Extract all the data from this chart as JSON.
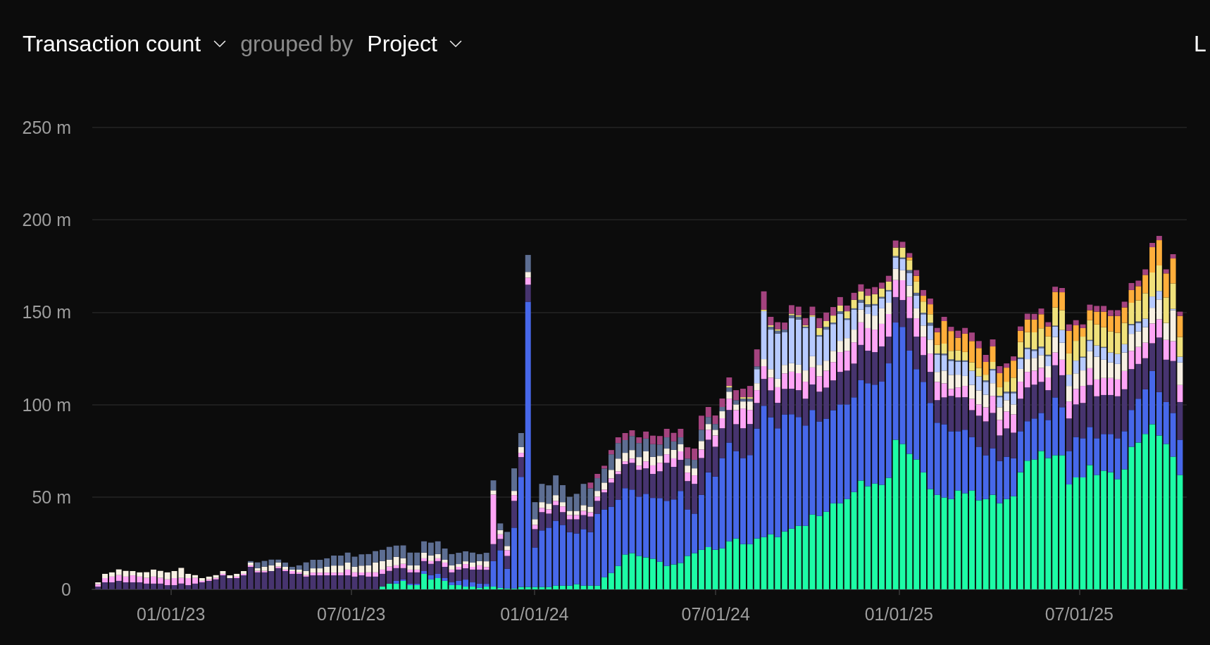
{
  "chart_data": {
    "type": "bar",
    "title": "Transaction count",
    "subtitle": "grouped by",
    "annotations": [
      "Project",
      "L"
    ],
    "stacked": true,
    "grid": "y",
    "xlim": [
      "2022-10-14",
      "2025-10-17"
    ],
    "xticks": [
      {
        "value": "2023-01-01",
        "label": "01/01/23"
      },
      {
        "value": "2023-07-01",
        "label": "07/01/23"
      },
      {
        "value": "2024-01-01",
        "label": "01/01/24"
      },
      {
        "value": "2024-07-01",
        "label": "07/01/24"
      },
      {
        "value": "2025-01-01",
        "label": "01/01/25"
      },
      {
        "value": "2025-07-01",
        "label": "07/01/25"
      }
    ],
    "ylim": [
      0,
      250
    ],
    "yticks": [
      0,
      {
        "value": 50,
        "label": "50 m"
      },
      {
        "value": 100,
        "label": "100 m"
      },
      {
        "value": 150,
        "label": "150 m"
      },
      {
        "value": 200,
        "label": "200 m"
      },
      {
        "value": 250,
        "label": "250 m"
      }
    ],
    "x": [
      "2022-10-17",
      "2022-10-24",
      "2022-10-31",
      "2022-11-07",
      "2022-11-14",
      "2022-11-21",
      "2022-11-28",
      "2022-12-05",
      "2022-12-12",
      "2022-12-19",
      "2022-12-26",
      "2023-01-02",
      "2023-01-09",
      "2023-01-16",
      "2023-01-23",
      "2023-01-30",
      "2023-02-06",
      "2023-02-13",
      "2023-02-20",
      "2023-02-27",
      "2023-03-06",
      "2023-03-13",
      "2023-03-20",
      "2023-03-27",
      "2023-04-03",
      "2023-04-10",
      "2023-04-17",
      "2023-04-24",
      "2023-05-01",
      "2023-05-08",
      "2023-05-15",
      "2023-05-22",
      "2023-05-29",
      "2023-06-05",
      "2023-06-12",
      "2023-06-19",
      "2023-06-26",
      "2023-07-03",
      "2023-07-10",
      "2023-07-17",
      "2023-07-24",
      "2023-07-31",
      "2023-08-07",
      "2023-08-14",
      "2023-08-21",
      "2023-08-28",
      "2023-09-04",
      "2023-09-11",
      "2023-09-18",
      "2023-09-25",
      "2023-10-02",
      "2023-10-09",
      "2023-10-16",
      "2023-10-23",
      "2023-10-30",
      "2023-11-06",
      "2023-11-13",
      "2023-11-20",
      "2023-11-27",
      "2023-12-04",
      "2023-12-11",
      "2023-12-18",
      "2023-12-25",
      "2024-01-01",
      "2024-01-08",
      "2024-01-15",
      "2024-01-22",
      "2024-01-29",
      "2024-02-05",
      "2024-02-12",
      "2024-02-19",
      "2024-02-26",
      "2024-03-04",
      "2024-03-11",
      "2024-03-18",
      "2024-03-25",
      "2024-04-01",
      "2024-04-08",
      "2024-04-15",
      "2024-04-22",
      "2024-04-29",
      "2024-05-06",
      "2024-05-13",
      "2024-05-20",
      "2024-05-27",
      "2024-06-03",
      "2024-06-10",
      "2024-06-17",
      "2024-06-24",
      "2024-07-01",
      "2024-07-08",
      "2024-07-15",
      "2024-07-22",
      "2024-07-29",
      "2024-08-05",
      "2024-08-12",
      "2024-08-19",
      "2024-08-26",
      "2024-09-02",
      "2024-09-09",
      "2024-09-16",
      "2024-09-23",
      "2024-09-30",
      "2024-10-07",
      "2024-10-14",
      "2024-10-21",
      "2024-10-28",
      "2024-11-04",
      "2024-11-11",
      "2024-11-18",
      "2024-11-25",
      "2024-12-02",
      "2024-12-09",
      "2024-12-16",
      "2024-12-23",
      "2024-12-30",
      "2025-01-06",
      "2025-01-13",
      "2025-01-20",
      "2025-01-27",
      "2025-02-03",
      "2025-02-10",
      "2025-02-17",
      "2025-02-24",
      "2025-03-03",
      "2025-03-10",
      "2025-03-17",
      "2025-03-24",
      "2025-03-31",
      "2025-04-07",
      "2025-04-14",
      "2025-04-21",
      "2025-04-28",
      "2025-05-05",
      "2025-05-12",
      "2025-05-19",
      "2025-05-26",
      "2025-06-02",
      "2025-06-09",
      "2025-06-16",
      "2025-06-23",
      "2025-06-30",
      "2025-07-07",
      "2025-07-14",
      "2025-07-21",
      "2025-07-28",
      "2025-08-04",
      "2025-08-11",
      "2025-08-18",
      "2025-08-25",
      "2025-09-01",
      "2025-09-08",
      "2025-09-15",
      "2025-09-22",
      "2025-09-29",
      "2025-10-06",
      "2025-10-13"
    ],
    "series": [
      {
        "color": "#1dfca6",
        "values": [
          null,
          null,
          null,
          null,
          null,
          null,
          null,
          null,
          null,
          null,
          null,
          null,
          null,
          null,
          null,
          null,
          null,
          null,
          null,
          null,
          null,
          null,
          null,
          null,
          null,
          null,
          null,
          null,
          null,
          null,
          null,
          null,
          null,
          null,
          null,
          null,
          null,
          null,
          null,
          null,
          null,
          1.5,
          3.1,
          3.1,
          4.6,
          2.3,
          2.3,
          8.4,
          5.4,
          6.1,
          4.6,
          2.3,
          2.3,
          1.5,
          1.5,
          0.8,
          1.5,
          1.5,
          0.8,
          0.5,
          0.5,
          1.3,
          1.3,
          1.3,
          1.3,
          1.3,
          2.0,
          2.0,
          2.0,
          2.8,
          2.0,
          2.0,
          2.0,
          6.6,
          8.9,
          12.7,
          18.9,
          19.6,
          18.1,
          17.3,
          16.6,
          15.0,
          12.7,
          13.5,
          14.3,
          18.1,
          19.6,
          21.4,
          22.9,
          21.4,
          22.2,
          26.0,
          27.5,
          24.5,
          24.5,
          27.5,
          28.3,
          29.8,
          28.3,
          31.3,
          32.9,
          34.4,
          34.4,
          40.5,
          39.7,
          42.0,
          46.6,
          46.6,
          48.9,
          52.7,
          58.9,
          55.8,
          57.3,
          56.6,
          60.4,
          81.0,
          78.7,
          73.4,
          70.3,
          63.4,
          54.3,
          51.2,
          49.7,
          48.9,
          53.5,
          52.0,
          53.5,
          48.2,
          48.9,
          51.2,
          46.6,
          48.9,
          50.4,
          63.4,
          69.6,
          70.3,
          74.9,
          71.1,
          72.6,
          72.6,
          56.8,
          60.6,
          60.6,
          67.3,
          61.9,
          64.2,
          63.4,
          59.6,
          65.0,
          77.2,
          79.5,
          84.1,
          89.4,
          83.3,
          78.7,
          71.8,
          61.9
        ]
      },
      {
        "color": "#4768ea",
        "values": [
          null,
          null,
          null,
          null,
          null,
          null,
          null,
          null,
          null,
          null,
          null,
          null,
          null,
          null,
          null,
          null,
          null,
          null,
          null,
          null,
          null,
          null,
          null,
          null,
          null,
          null,
          null,
          null,
          null,
          null,
          null,
          null,
          null,
          null,
          null,
          null,
          null,
          null,
          null,
          null,
          null,
          null,
          null,
          1.5,
          0.8,
          0.8,
          0.8,
          1.5,
          2.3,
          2.3,
          1.5,
          1.5,
          2.3,
          3.8,
          2.3,
          2.3,
          1.5,
          13.8,
          20.4,
          10.7,
          32.9,
          59.6,
          154.4,
          21.4,
          30.6,
          32.1,
          35.2,
          32.9,
          29.0,
          27.5,
          30.6,
          29.0,
          39.0,
          36.7,
          35.9,
          35.9,
          35.9,
          34.4,
          32.1,
          34.4,
          32.9,
          34.4,
          35.2,
          35.2,
          39.0,
          25.2,
          21.4,
          29.8,
          40.5,
          39.7,
          48.9,
          53.5,
          47.4,
          46.6,
          48.2,
          59.6,
          71.1,
          63.4,
          58.9,
          63.4,
          61.9,
          58.9,
          54.3,
          56.6,
          51.2,
          50.4,
          50.4,
          53.5,
          51.2,
          51.2,
          54.3,
          55.8,
          53.5,
          55.8,
          61.9,
          63.4,
          63.4,
          55.8,
          48.9,
          48.9,
          46.6,
          39.0,
          39.7,
          36.7,
          32.1,
          34.4,
          29.0,
          29.0,
          23.7,
          25.2,
          22.9,
          22.9,
          20.6,
          22.2,
          21.4,
          22.2,
          20.6,
          20.6,
          31.3,
          26.0,
          18.1,
          21.9,
          21.2,
          20.6,
          19.9,
          19.9,
          20.7,
          22.2,
          20.6,
          19.9,
          23.7,
          24.2,
          28.8,
          23.5,
          22.7,
          23.7,
          19.1
        ]
      },
      {
        "color": "#47346f",
        "values": [
          1.5,
          3.8,
          3.8,
          4.6,
          3.8,
          3.8,
          3.8,
          3.1,
          3.1,
          3.1,
          2.3,
          2.3,
          3.1,
          2.3,
          3.1,
          3.8,
          4.6,
          5.4,
          7.6,
          6.1,
          6.1,
          7.6,
          12.2,
          9.2,
          9.2,
          9.9,
          11.5,
          9.9,
          8.4,
          8.4,
          6.9,
          7.6,
          7.6,
          7.6,
          7.6,
          7.6,
          7.6,
          6.9,
          7.6,
          6.9,
          6.9,
          6.9,
          6.9,
          6.9,
          6.1,
          6.1,
          6.1,
          5.4,
          6.1,
          6.9,
          6.1,
          5.4,
          6.1,
          6.1,
          6.9,
          7.6,
          7.6,
          9.2,
          6.1,
          6.9,
          14.5,
          10.7,
          9.2,
          9.9,
          9.9,
          7.6,
          8.4,
          6.9,
          6.9,
          7.6,
          7.6,
          8.4,
          6.9,
          9.2,
          13.0,
          13.8,
          13.0,
          14.5,
          14.5,
          13.8,
          13.0,
          14.5,
          20.6,
          17.6,
          16.8,
          15.3,
          16.1,
          19.9,
          17.6,
          16.1,
          16.1,
          17.6,
          14.5,
          16.1,
          16.8,
          13.8,
          14.5,
          14.5,
          13.8,
          13.8,
          13.8,
          14.5,
          14.5,
          13.8,
          16.1,
          16.8,
          16.1,
          17.6,
          18.3,
          18.3,
          19.1,
          17.6,
          17.6,
          19.1,
          14.5,
          13.8,
          14.5,
          17.6,
          17.6,
          14.5,
          16.8,
          12.2,
          14.5,
          19.1,
          18.3,
          17.6,
          14.5,
          16.8,
          18.3,
          19.1,
          13.8,
          15.3,
          13.8,
          17.6,
          18.3,
          18.3,
          16.8,
          16.1,
          17.4,
          17.3,
          17.6,
          17.6,
          19.1,
          22.7,
          22.7,
          21.1,
          21.1,
          22.7,
          22.7,
          22.1,
          18.8,
          16.8,
          15.0,
          29.5,
          22.9,
          28.1,
          20.4
        ]
      },
      {
        "color": "#ffa5f6",
        "values": [
          1.3,
          2.3,
          3.1,
          3.1,
          3.1,
          3.8,
          3.1,
          3.1,
          3.8,
          3.1,
          3.1,
          3.8,
          3.1,
          3.8,
          3.1,
          0.8,
          0.8,
          0.8,
          0.8,
          null,
          0.8,
          0.8,
          0.8,
          0.8,
          0.8,
          null,
          0.8,
          0.8,
          1.5,
          0.8,
          0.8,
          1.5,
          1.5,
          1.5,
          1.5,
          1.5,
          3.1,
          2.3,
          1.5,
          2.3,
          2.3,
          2.3,
          2.3,
          1.5,
          2.3,
          1.5,
          1.5,
          1.5,
          1.5,
          1.5,
          2.3,
          1.5,
          1.5,
          2.3,
          1.5,
          2.3,
          1.5,
          26.8,
          2.5,
          3.1,
          3.1,
          2.3,
          3.8,
          2.3,
          2.3,
          2.3,
          2.3,
          3.1,
          2.3,
          2.3,
          2.3,
          2.3,
          2.3,
          1.5,
          2.3,
          1.5,
          1.5,
          2.3,
          2.3,
          3.8,
          4.6,
          4.6,
          4.6,
          4.6,
          4.6,
          4.6,
          4.6,
          4.6,
          5.4,
          6.1,
          5.4,
          6.1,
          7.6,
          10.7,
          7.6,
          6.9,
          6.9,
          6.9,
          8.4,
          8.4,
          9.2,
          9.2,
          9.2,
          9.2,
          8.4,
          9.2,
          9.9,
          10.7,
          10.7,
          11.5,
          12.2,
          12.2,
          12.2,
          12.2,
          12.2,
          9.2,
          10.7,
          11.5,
          9.9,
          9.9,
          9.9,
          9.9,
          7.6,
          3.8,
          5.4,
          6.1,
          6.1,
          6.1,
          7.6,
          9.2,
          8.4,
          9.2,
          9.9,
          9.2,
          8.4,
          7.6,
          7.6,
          6.9,
          6.9,
          8.4,
          9.2,
          8.4,
          9.2,
          9.1,
          9.1,
          9.2,
          9.2,
          9.1,
          9.9,
          9.9,
          9.2,
          8.4,
          10.7,
          9.9,
          10.7,
          10.7,
          9.2
        ]
      },
      {
        "color": "#f7f0e3",
        "values": [
          1.0,
          2.3,
          2.3,
          3.1,
          3.1,
          2.3,
          2.3,
          3.1,
          3.8,
          3.8,
          3.8,
          3.8,
          5.4,
          2.3,
          1.5,
          1.5,
          1.5,
          1.5,
          1.5,
          1.5,
          1.5,
          1.5,
          1.5,
          1.5,
          2.3,
          3.1,
          2.3,
          1.5,
          0.8,
          1.5,
          2.3,
          2.3,
          2.3,
          3.1,
          3.8,
          3.8,
          3.8,
          3.1,
          3.8,
          3.8,
          5.4,
          4.6,
          3.8,
          4.6,
          3.1,
          2.3,
          2.3,
          3.1,
          3.1,
          2.3,
          1.5,
          2.3,
          1.5,
          1.5,
          2.3,
          2.3,
          3.1,
          2.3,
          2.3,
          2.3,
          2.3,
          3.1,
          3.1,
          3.1,
          3.1,
          3.1,
          3.1,
          2.3,
          2.3,
          2.3,
          3.1,
          3.1,
          3.1,
          3.8,
          4.6,
          6.9,
          4.6,
          4.6,
          4.6,
          5.4,
          4.6,
          3.8,
          3.1,
          4.6,
          3.8,
          3.8,
          3.8,
          4.6,
          3.1,
          3.1,
          3.8,
          3.8,
          3.1,
          3.8,
          4.6,
          3.8,
          3.8,
          4.6,
          4.6,
          4.6,
          4.6,
          4.6,
          6.1,
          6.1,
          6.1,
          5.4,
          6.1,
          6.1,
          6.9,
          6.9,
          6.9,
          7.6,
          7.6,
          8.4,
          6.1,
          6.1,
          5.4,
          6.1,
          5.4,
          6.1,
          7.6,
          5.4,
          6.9,
          7.6,
          6.9,
          5.4,
          7.6,
          7.6,
          6.9,
          6.9,
          6.9,
          6.1,
          5.4,
          6.9,
          6.9,
          6.9,
          6.9,
          6.1,
          8.4,
          9.2,
          8.4,
          8.4,
          8.4,
          9.2,
          12.3,
          9.9,
          8.4,
          8.4,
          10.0,
          9.2,
          8.4,
          8.4,
          8.5,
          10.7,
          9.2,
          16.8,
          12.2
        ]
      },
      {
        "color": "#b7caff",
        "values": [
          null,
          null,
          null,
          null,
          null,
          null,
          null,
          null,
          null,
          null,
          null,
          null,
          null,
          null,
          null,
          null,
          null,
          null,
          null,
          null,
          null,
          null,
          null,
          null,
          null,
          null,
          null,
          null,
          null,
          null,
          null,
          null,
          null,
          null,
          null,
          null,
          null,
          null,
          null,
          null,
          null,
          null,
          null,
          null,
          null,
          null,
          null,
          null,
          null,
          null,
          null,
          null,
          null,
          null,
          null,
          null,
          null,
          null,
          null,
          null,
          null,
          null,
          null,
          null,
          null,
          null,
          null,
          null,
          null,
          null,
          null,
          null,
          null,
          null,
          null,
          null,
          null,
          null,
          null,
          null,
          null,
          null,
          null,
          null,
          null,
          null,
          null,
          null,
          null,
          null,
          null,
          null,
          null,
          null,
          null,
          7.6,
          26.0,
          21.4,
          24.5,
          17.6,
          24.5,
          24.5,
          22.9,
          21.4,
          15.3,
          16.8,
          14.5,
          14.5,
          9.9,
          10.7,
          3.8,
          3.8,
          5.4,
          5.4,
          6.1,
          6.1,
          6.1,
          6.9,
          6.9,
          6.1,
          7.6,
          9.2,
          8.4,
          7.6,
          6.9,
          7.6,
          7.6,
          7.6,
          6.9,
          6.9,
          5.4,
          3.8,
          6.1,
          5.4,
          5.4,
          3.8,
          3.8,
          5.4,
          5.6,
          6.9,
          6.1,
          6.9,
          6.9,
          5.6,
          6.1,
          6.4,
          5.4,
          5.4,
          4.5,
          4.8,
          4.6,
          4.6,
          6.1,
          4.6,
          null,
          0.7,
          3.1
        ]
      },
      {
        "color": "#5d6e92",
        "values": [
          null,
          null,
          null,
          null,
          null,
          null,
          null,
          null,
          null,
          null,
          null,
          null,
          null,
          null,
          null,
          null,
          null,
          null,
          null,
          null,
          null,
          null,
          0.8,
          3.1,
          3.1,
          3.1,
          1.5,
          2.3,
          1.5,
          2.3,
          4.6,
          4.6,
          4.6,
          4.6,
          5.4,
          5.4,
          5.4,
          5.4,
          6.1,
          6.1,
          6.1,
          6.1,
          6.9,
          6.1,
          6.9,
          6.9,
          6.9,
          6.1,
          6.9,
          6.9,
          6.1,
          6.1,
          6.1,
          5.4,
          5.4,
          3.8,
          4.6,
          5.4,
          3.6,
          7.6,
          12.2,
          7.6,
          9.2,
          9.2,
          9.9,
          9.9,
          10.7,
          9.2,
          7.6,
          9.2,
          11.5,
          9.9,
          6.9,
          7.6,
          8.4,
          8.4,
          6.9,
          7.6,
          7.6,
          6.9,
          6.9,
          6.1,
          6.1,
          4.6,
          3.8,
          3.8,
          4.6,
          6.1,
          3.8,
          3.1,
          2.3,
          2.3,
          2.3,
          1.5,
          1.5,
          1.5,
          null,
          1.5,
          1.5,
          1.5,
          1.5,
          1.5,
          0.8,
          null,
          0.8,
          1.5,
          0.8,
          1.5,
          0.8,
          0.8,
          1.5,
          1.5,
          0.8,
          0.8,
          0.8,
          0.8,
          0.8,
          1.5,
          1.5,
          0.8,
          1.5,
          0.8,
          0.8,
          0.8,
          0.8,
          0.8,
          null,
          null,
          0.8,
          0.8,
          0.8,
          0.8,
          0.8,
          0.8,
          0.8,
          0.8,
          0.8,
          0.8,
          0.5,
          null,
          null,
          null,
          0.5,
          0.5,
          null,
          0.5,
          null,
          null,
          null,
          0.5,
          0.8,
          null,
          null,
          null,
          null,
          null,
          null
        ]
      },
      {
        "color": "#f0e17b",
        "values": [
          null,
          null,
          null,
          null,
          null,
          null,
          null,
          null,
          null,
          null,
          null,
          null,
          null,
          null,
          null,
          null,
          null,
          null,
          null,
          null,
          null,
          null,
          null,
          null,
          null,
          null,
          null,
          null,
          null,
          null,
          null,
          null,
          null,
          null,
          null,
          null,
          null,
          null,
          null,
          null,
          null,
          null,
          null,
          null,
          null,
          null,
          null,
          null,
          null,
          null,
          null,
          null,
          null,
          null,
          null,
          null,
          null,
          null,
          null,
          null,
          null,
          null,
          null,
          null,
          null,
          null,
          null,
          null,
          null,
          null,
          null,
          null,
          null,
          null,
          null,
          null,
          null,
          null,
          null,
          null,
          null,
          null,
          null,
          null,
          null,
          null,
          null,
          null,
          null,
          null,
          null,
          0.8,
          null,
          0.8,
          0.8,
          null,
          0.8,
          0.8,
          0.8,
          null,
          0.8,
          0.8,
          0.8,
          0.8,
          3.8,
          3.1,
          3.8,
          3.1,
          3.8,
          4.6,
          4.6,
          4.6,
          5.4,
          4.6,
          4.6,
          4.6,
          5.4,
          5.4,
          6.1,
          6.1,
          4.6,
          4.6,
          5.4,
          4.6,
          5.4,
          4.6,
          4.6,
          4.6,
          3.1,
          3.8,
          4.6,
          5.4,
          7.6,
          8.4,
          8.4,
          9.2,
          9.9,
          9.9,
          9.9,
          10.7,
          11.5,
          10.7,
          10.9,
          10.7,
          11.4,
          10.7,
          11.4,
          11.5,
          11.5,
          11.5,
          11.4,
          13.8,
          13.0,
          13.8,
          13.8,
          13.8,
          10.7
        ]
      },
      {
        "color": "#ffae3b",
        "values": [
          null,
          null,
          null,
          null,
          null,
          null,
          null,
          null,
          null,
          null,
          null,
          null,
          null,
          null,
          null,
          null,
          null,
          null,
          null,
          null,
          null,
          null,
          null,
          null,
          null,
          null,
          null,
          null,
          null,
          null,
          null,
          null,
          null,
          null,
          null,
          null,
          null,
          null,
          null,
          null,
          null,
          null,
          null,
          null,
          null,
          null,
          null,
          null,
          null,
          null,
          null,
          null,
          null,
          null,
          null,
          null,
          null,
          null,
          null,
          null,
          null,
          null,
          null,
          null,
          null,
          null,
          null,
          null,
          null,
          null,
          null,
          null,
          null,
          null,
          null,
          null,
          null,
          null,
          null,
          null,
          null,
          null,
          null,
          null,
          null,
          null,
          null,
          null,
          null,
          null,
          null,
          null,
          null,
          null,
          null,
          null,
          null,
          null,
          null,
          null,
          null,
          null,
          null,
          null,
          null,
          null,
          null,
          null,
          null,
          null,
          null,
          null,
          null,
          null,
          null,
          null,
          null,
          1.5,
          3.1,
          3.1,
          5.4,
          6.9,
          12.2,
          10.7,
          6.9,
          9.9,
          11.5,
          10.7,
          6.9,
          8.4,
          7.6,
          7.6,
          9.2,
          6.1,
          6.9,
          6.9,
          7.6,
          5.4,
          8.4,
          9.7,
          12.2,
          8.4,
          4.6,
          5.4,
          6.9,
          8.4,
          8.4,
          9.1,
          8.4,
          6.9,
          7.7,
          9.9,
          13.7,
          13.7,
          13.0,
          13.5,
          11.4
        ]
      },
      {
        "color": "#a4437f",
        "values": [
          null,
          null,
          null,
          null,
          null,
          null,
          null,
          null,
          null,
          null,
          null,
          null,
          null,
          null,
          null,
          null,
          null,
          null,
          null,
          null,
          null,
          null,
          null,
          null,
          null,
          null,
          null,
          null,
          null,
          null,
          null,
          null,
          null,
          null,
          null,
          null,
          null,
          null,
          null,
          null,
          null,
          null,
          null,
          null,
          null,
          null,
          null,
          null,
          null,
          null,
          null,
          null,
          null,
          null,
          null,
          null,
          null,
          null,
          null,
          null,
          null,
          null,
          null,
          null,
          null,
          null,
          null,
          null,
          null,
          null,
          null,
          3.1,
          2.3,
          1.5,
          2.3,
          3.1,
          3.8,
          3.1,
          3.1,
          3.8,
          4.6,
          4.6,
          4.6,
          4.6,
          4.6,
          6.1,
          6.1,
          7.6,
          5.4,
          4.6,
          4.6,
          4.6,
          5.4,
          4.6,
          6.1,
          9.2,
          9.9,
          4.6,
          3.8,
          3.8,
          4.6,
          4.6,
          3.8,
          4.6,
          5.4,
          4.6,
          4.6,
          4.6,
          3.1,
          3.8,
          3.8,
          3.8,
          3.8,
          3.1,
          3.1,
          3.8,
          3.1,
          2.3,
          3.1,
          3.1,
          3.1,
          2.3,
          2.3,
          2.3,
          3.8,
          3.1,
          4.6,
          3.8,
          3.8,
          3.8,
          3.8,
          2.3,
          2.3,
          2.3,
          3.1,
          3.1,
          3.1,
          2.3,
          2.8,
          2.3,
          3.5,
          2.8,
          2.0,
          3.0,
          3.1,
          3.1,
          3.1,
          3.1,
          3.1,
          3.8,
          3.0,
          3.0,
          2.3,
          2.3,
          2.2,
          2.3,
          2.3
        ]
      }
    ]
  }
}
